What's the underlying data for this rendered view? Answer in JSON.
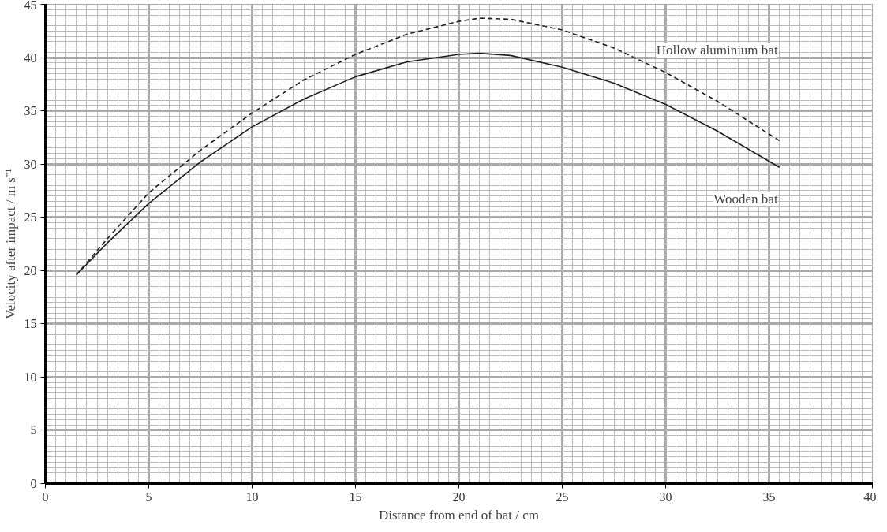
{
  "chart_data": {
    "type": "line",
    "xlabel": "Distance from end of bat / cm",
    "ylabel": "Velocity after impact / m s⁻¹",
    "xlim": [
      0,
      40
    ],
    "ylim": [
      0,
      45
    ],
    "xticks": [
      0,
      5,
      10,
      15,
      20,
      25,
      30,
      35,
      40
    ],
    "yticks": [
      0,
      5,
      10,
      15,
      20,
      25,
      30,
      35,
      40,
      45
    ],
    "grid": true,
    "legend": false,
    "series": [
      {
        "name": "Hollow aluminium bat",
        "color": "#222222",
        "line_style": "dashed",
        "x": [
          1.5,
          3,
          5,
          7.5,
          10,
          12.5,
          15,
          17.5,
          20,
          21,
          22.5,
          25,
          27.5,
          30,
          32.5,
          35.5
        ],
        "values": [
          19.6,
          23.0,
          27.3,
          31.3,
          34.8,
          37.9,
          40.3,
          42.2,
          43.4,
          43.7,
          43.6,
          42.6,
          40.9,
          38.6,
          35.9,
          32.2
        ]
      },
      {
        "name": "Wooden bat",
        "color": "#222222",
        "line_style": "solid",
        "x": [
          1.5,
          3,
          5,
          7.5,
          10,
          12.5,
          15,
          17.5,
          20,
          21,
          22.5,
          25,
          27.5,
          30,
          32.5,
          35.5
        ],
        "values": [
          19.6,
          22.6,
          26.3,
          30.2,
          33.5,
          36.1,
          38.2,
          39.6,
          40.3,
          40.4,
          40.2,
          39.1,
          37.6,
          35.6,
          33.1,
          29.7
        ]
      }
    ]
  }
}
